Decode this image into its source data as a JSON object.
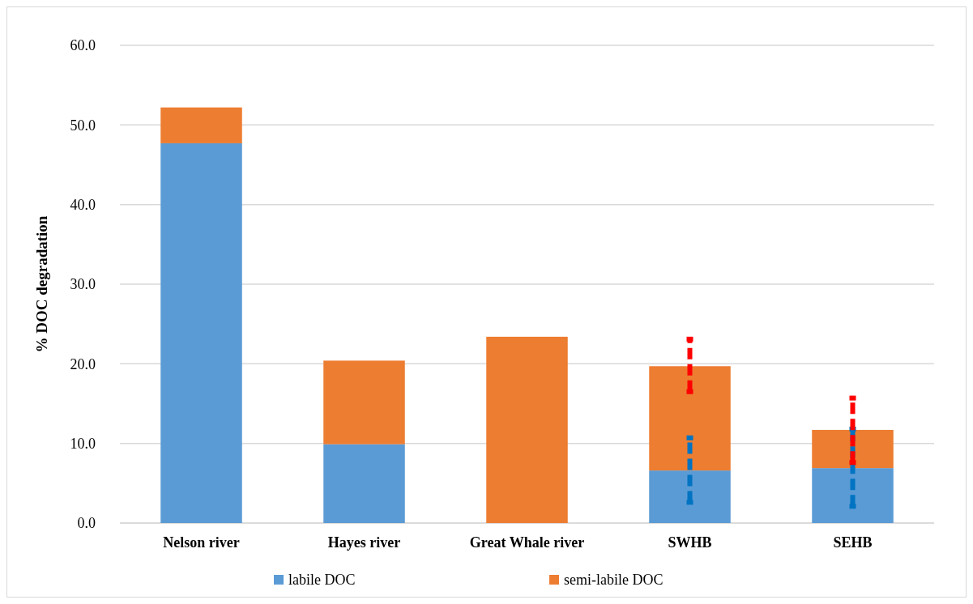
{
  "chart_data": {
    "type": "bar",
    "stacked": true,
    "ylabel": "% DOC degradation",
    "categories": [
      "Nelson river",
      "Hayes river",
      "Great Whale river",
      "SWHB",
      "SEHB"
    ],
    "series": [
      {
        "name": "labile DOC",
        "color": "#5b9bd5",
        "values": [
          47.7,
          9.9,
          0,
          6.6,
          6.9
        ],
        "errors": [
          null,
          null,
          null,
          [
            2.6,
            10.7
          ],
          [
            2.1,
            11.8
          ]
        ]
      },
      {
        "name": "semi-labile DOC",
        "color": "#ed7d31",
        "values": [
          4.5,
          10.5,
          23.4,
          13.1,
          4.8
        ],
        "errors": [
          null,
          null,
          null,
          [
            16.5,
            23.1
          ],
          [
            7.6,
            15.7
          ]
        ]
      }
    ],
    "ylim": [
      0,
      60
    ],
    "yticks": [
      {
        "value": 0,
        "label": "0.0"
      },
      {
        "value": 10,
        "label": "10.0"
      },
      {
        "value": 20,
        "label": "20.0"
      },
      {
        "value": 30,
        "label": "30.0"
      },
      {
        "value": 40,
        "label": "40.0"
      },
      {
        "value": 50,
        "label": "50.0"
      },
      {
        "value": 60,
        "label": "60.0"
      }
    ],
    "grid": "y",
    "legend": "bottom"
  }
}
